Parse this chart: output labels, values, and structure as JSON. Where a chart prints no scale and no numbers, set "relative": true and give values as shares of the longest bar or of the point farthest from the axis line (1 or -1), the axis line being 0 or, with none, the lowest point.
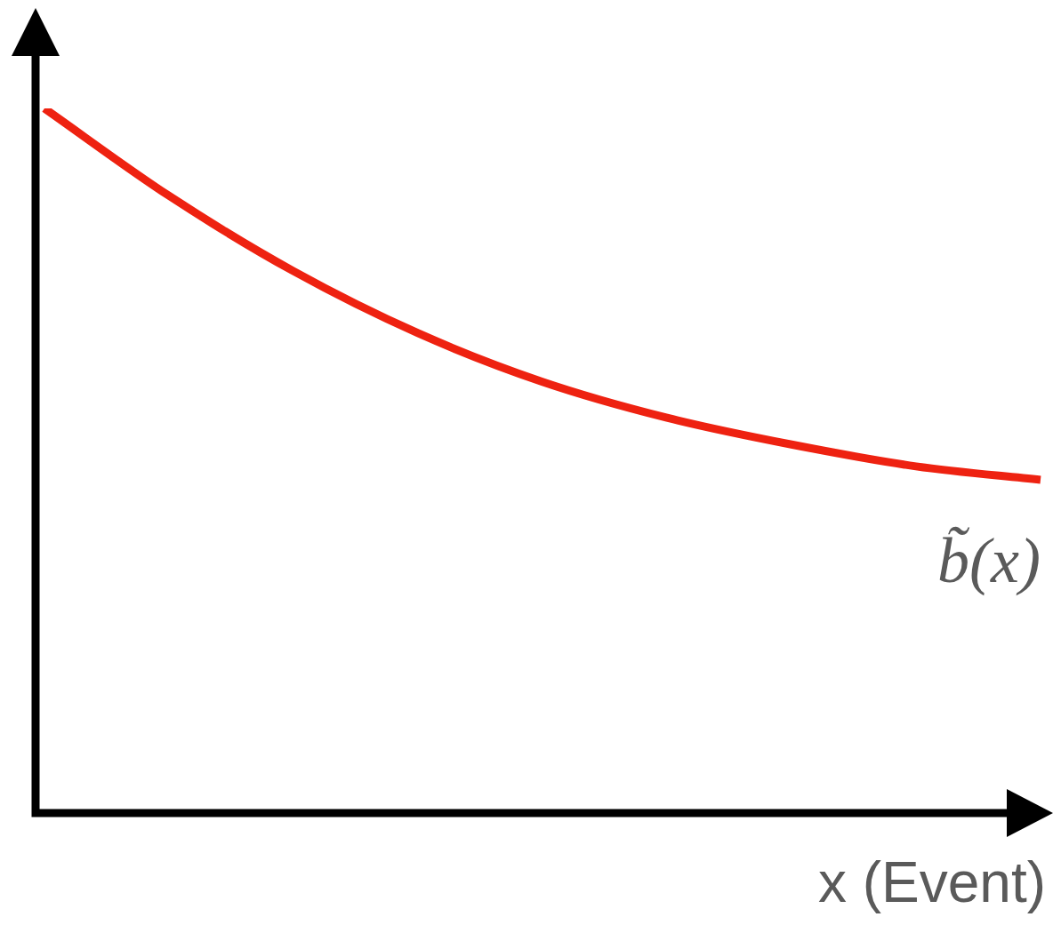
{
  "chart_data": {
    "type": "line",
    "xlabel": "x (Event)",
    "relative": true,
    "categories": [
      null,
      null,
      null,
      null,
      null,
      null,
      null,
      null,
      null
    ],
    "series": [
      {
        "name": "b̃(x)",
        "color": "#ee2211",
        "values": [
          1,
          0.876,
          0.769,
          0.681,
          0.612,
          0.561,
          0.523,
          0.492,
          0.473
        ]
      }
    ],
    "legend": false,
    "marker": "none"
  }
}
